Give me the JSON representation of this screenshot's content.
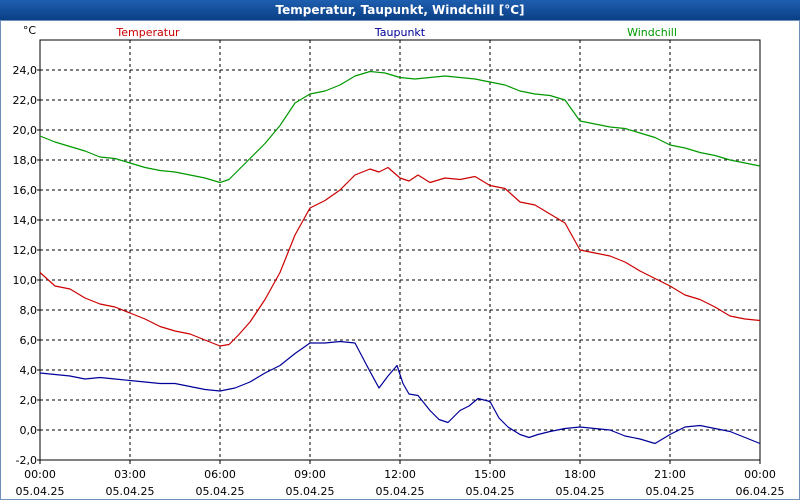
{
  "window": {
    "title": "Temperatur, Taupunkt, Windchill [°C]"
  },
  "chart_data": {
    "type": "line",
    "title": "Temperatur, Taupunkt, Windchill [°C]",
    "ylabel": "°C",
    "xlabel": "",
    "ylim": [
      -2,
      26
    ],
    "yticks": [
      -2,
      0,
      2,
      4,
      6,
      8,
      10,
      12,
      14,
      16,
      18,
      20,
      22,
      24
    ],
    "ytick_labels": [
      "-2,0",
      "0,0",
      "2,0",
      "4,0",
      "6,0",
      "8,0",
      "10,0",
      "12,0",
      "14,0",
      "16,0",
      "18,0",
      "20,0",
      "22,0",
      "24,0"
    ],
    "xlim": [
      0,
      24
    ],
    "xticks": [
      0,
      3,
      6,
      9,
      12,
      15,
      18,
      21,
      24
    ],
    "xtick_time_labels": [
      "00:00",
      "03:00",
      "06:00",
      "09:00",
      "12:00",
      "15:00",
      "18:00",
      "21:00",
      "00:00"
    ],
    "xtick_date_labels": [
      "05.04.25",
      "05.04.25",
      "05.04.25",
      "05.04.25",
      "05.04.25",
      "05.04.25",
      "05.04.25",
      "05.04.25",
      "06.04.25"
    ],
    "grid": true,
    "legend_position": "top",
    "series": [
      {
        "name": "Temperatur",
        "color": "#cc0000",
        "points": [
          [
            0,
            10.5
          ],
          [
            0.5,
            9.6
          ],
          [
            1,
            9.4
          ],
          [
            1.5,
            8.8
          ],
          [
            2,
            8.4
          ],
          [
            2.5,
            8.2
          ],
          [
            3,
            7.8
          ],
          [
            3.5,
            7.4
          ],
          [
            4,
            6.9
          ],
          [
            4.5,
            6.6
          ],
          [
            5,
            6.4
          ],
          [
            5.5,
            6.0
          ],
          [
            6,
            5.6
          ],
          [
            6.3,
            5.7
          ],
          [
            6.6,
            6.3
          ],
          [
            7,
            7.2
          ],
          [
            7.5,
            8.7
          ],
          [
            8,
            10.5
          ],
          [
            8.5,
            13.0
          ],
          [
            9,
            14.8
          ],
          [
            9.5,
            15.3
          ],
          [
            10,
            16.0
          ],
          [
            10.5,
            17.0
          ],
          [
            11,
            17.4
          ],
          [
            11.3,
            17.2
          ],
          [
            11.6,
            17.5
          ],
          [
            12,
            16.8
          ],
          [
            12.3,
            16.6
          ],
          [
            12.6,
            17.0
          ],
          [
            13,
            16.5
          ],
          [
            13.5,
            16.8
          ],
          [
            14,
            16.7
          ],
          [
            14.5,
            16.9
          ],
          [
            15,
            16.3
          ],
          [
            15.5,
            16.1
          ],
          [
            16,
            15.2
          ],
          [
            16.5,
            15.0
          ],
          [
            17,
            14.4
          ],
          [
            17.5,
            13.8
          ],
          [
            18,
            12.0
          ],
          [
            18.5,
            11.8
          ],
          [
            19,
            11.6
          ],
          [
            19.5,
            11.2
          ],
          [
            20,
            10.6
          ],
          [
            20.5,
            10.1
          ],
          [
            21,
            9.6
          ],
          [
            21.5,
            9.0
          ],
          [
            22,
            8.7
          ],
          [
            22.5,
            8.2
          ],
          [
            23,
            7.6
          ],
          [
            23.5,
            7.4
          ],
          [
            24,
            7.3
          ]
        ]
      },
      {
        "name": "Taupunkt",
        "color": "#000099",
        "points": [
          [
            0,
            3.8
          ],
          [
            0.5,
            3.7
          ],
          [
            1,
            3.6
          ],
          [
            1.5,
            3.4
          ],
          [
            2,
            3.5
          ],
          [
            2.5,
            3.4
          ],
          [
            3,
            3.3
          ],
          [
            3.5,
            3.2
          ],
          [
            4,
            3.1
          ],
          [
            4.5,
            3.1
          ],
          [
            5,
            2.9
          ],
          [
            5.5,
            2.7
          ],
          [
            6,
            2.6
          ],
          [
            6.5,
            2.8
          ],
          [
            7,
            3.2
          ],
          [
            7.5,
            3.8
          ],
          [
            8,
            4.3
          ],
          [
            8.5,
            5.1
          ],
          [
            9,
            5.8
          ],
          [
            9.5,
            5.8
          ],
          [
            10,
            5.9
          ],
          [
            10.5,
            5.8
          ],
          [
            11,
            3.9
          ],
          [
            11.3,
            2.8
          ],
          [
            11.6,
            3.6
          ],
          [
            11.9,
            4.3
          ],
          [
            12.1,
            3.1
          ],
          [
            12.3,
            2.4
          ],
          [
            12.6,
            2.3
          ],
          [
            12.8,
            1.8
          ],
          [
            13,
            1.3
          ],
          [
            13.3,
            0.7
          ],
          [
            13.6,
            0.5
          ],
          [
            14,
            1.3
          ],
          [
            14.3,
            1.6
          ],
          [
            14.6,
            2.1
          ],
          [
            15,
            1.9
          ],
          [
            15.3,
            0.8
          ],
          [
            15.6,
            0.2
          ],
          [
            16,
            -0.3
          ],
          [
            16.3,
            -0.5
          ],
          [
            16.6,
            -0.3
          ],
          [
            17,
            -0.1
          ],
          [
            17.5,
            0.1
          ],
          [
            18,
            0.2
          ],
          [
            18.5,
            0.1
          ],
          [
            19,
            0.0
          ],
          [
            19.5,
            -0.4
          ],
          [
            20,
            -0.6
          ],
          [
            20.5,
            -0.9
          ],
          [
            21,
            -0.3
          ],
          [
            21.5,
            0.2
          ],
          [
            22,
            0.3
          ],
          [
            22.5,
            0.1
          ],
          [
            23,
            -0.1
          ],
          [
            23.5,
            -0.5
          ],
          [
            24,
            -0.9
          ]
        ]
      },
      {
        "name": "Windchill",
        "color": "#009900",
        "points": [
          [
            0,
            19.6
          ],
          [
            0.5,
            19.2
          ],
          [
            1,
            18.9
          ],
          [
            1.5,
            18.6
          ],
          [
            2,
            18.2
          ],
          [
            2.5,
            18.1
          ],
          [
            3,
            17.8
          ],
          [
            3.5,
            17.5
          ],
          [
            4,
            17.3
          ],
          [
            4.5,
            17.2
          ],
          [
            5,
            17.0
          ],
          [
            5.5,
            16.8
          ],
          [
            6,
            16.5
          ],
          [
            6.3,
            16.7
          ],
          [
            6.6,
            17.3
          ],
          [
            7,
            18.1
          ],
          [
            7.5,
            19.1
          ],
          [
            8,
            20.3
          ],
          [
            8.5,
            21.8
          ],
          [
            9,
            22.4
          ],
          [
            9.5,
            22.6
          ],
          [
            10,
            23.0
          ],
          [
            10.5,
            23.6
          ],
          [
            11,
            23.9
          ],
          [
            11.5,
            23.8
          ],
          [
            12,
            23.5
          ],
          [
            12.5,
            23.4
          ],
          [
            13,
            23.5
          ],
          [
            13.5,
            23.6
          ],
          [
            14,
            23.5
          ],
          [
            14.5,
            23.4
          ],
          [
            15,
            23.2
          ],
          [
            15.5,
            23.0
          ],
          [
            16,
            22.6
          ],
          [
            16.5,
            22.4
          ],
          [
            17,
            22.3
          ],
          [
            17.5,
            22.0
          ],
          [
            18,
            20.6
          ],
          [
            18.5,
            20.4
          ],
          [
            19,
            20.2
          ],
          [
            19.5,
            20.1
          ],
          [
            20,
            19.8
          ],
          [
            20.5,
            19.5
          ],
          [
            21,
            19.0
          ],
          [
            21.5,
            18.8
          ],
          [
            22,
            18.5
          ],
          [
            22.5,
            18.3
          ],
          [
            23,
            18.0
          ],
          [
            23.5,
            17.8
          ],
          [
            24,
            17.6
          ]
        ]
      }
    ]
  }
}
